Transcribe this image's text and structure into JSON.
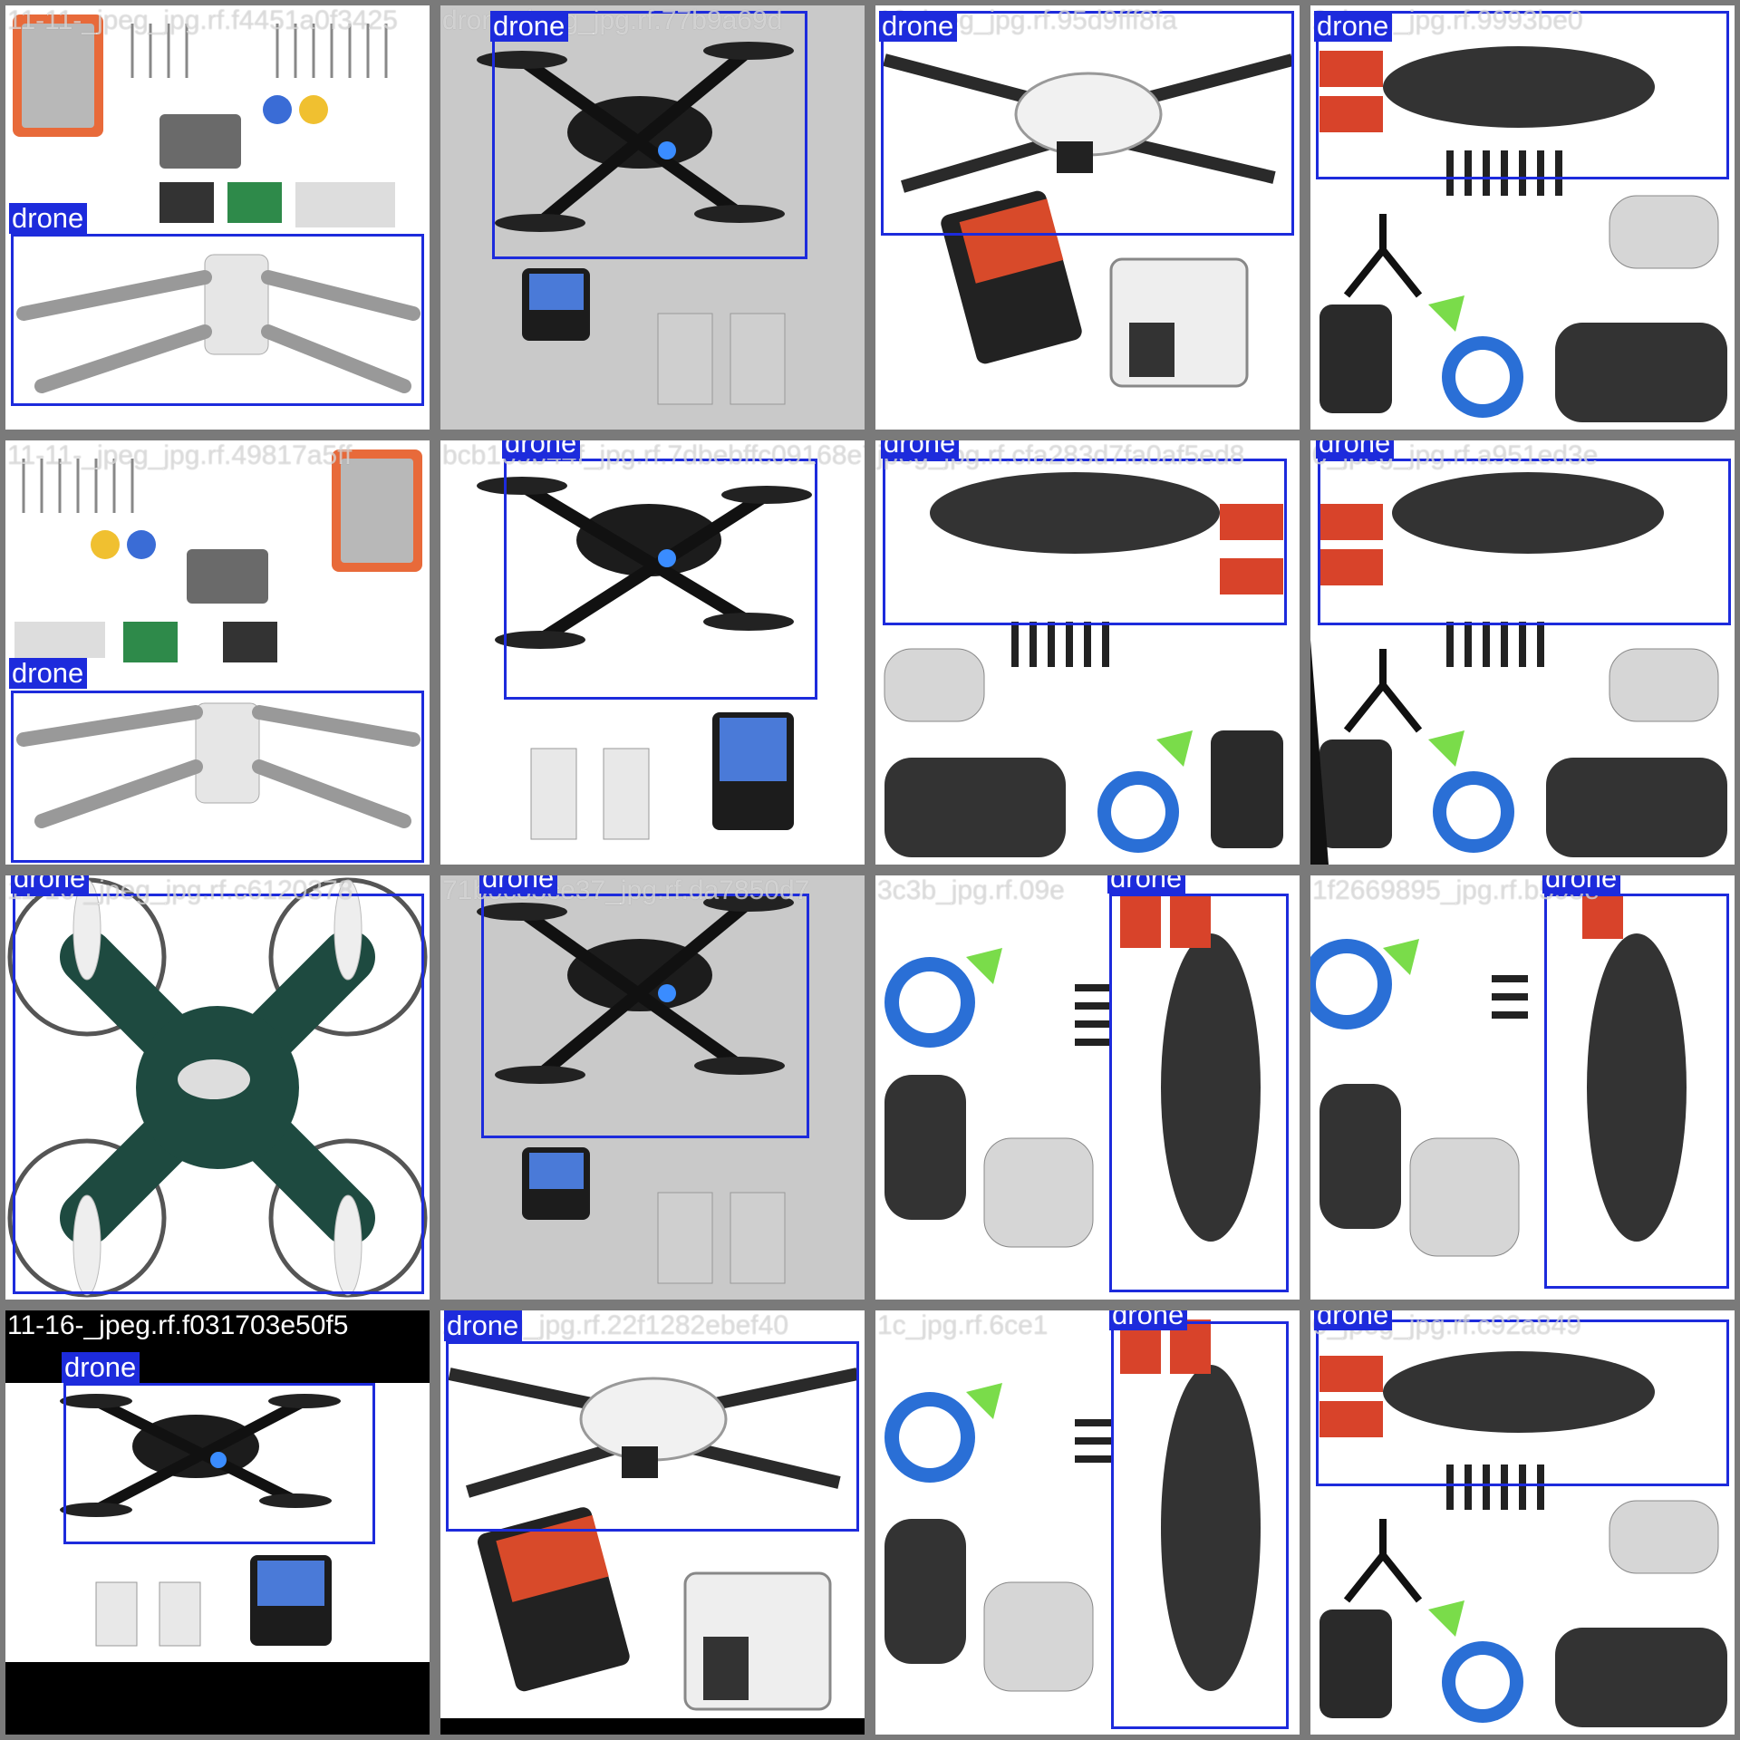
{
  "class_label": "drone",
  "box_color": "#1d2bdc",
  "tiles": [
    {
      "filename": "11-11-_jpeg_jpg.rf.f4451a0f3425"
    },
    {
      "filename": "drone_jpeg_jpg.rf.77b9a69d"
    },
    {
      "filename": "10_jpeg_jpg.rf.95d9fff8fa"
    },
    {
      "filename": "2_jpeg_jpg.rf.9993be0"
    },
    {
      "filename": "11-11-_jpeg_jpg.rf.49817a5ff"
    },
    {
      "filename": "bcb169b44f_jpg.rf.7dbebffc09168e7"
    },
    {
      "filename": "jpeg_jpg.rf.cfa283d7fa0af5ed8"
    },
    {
      "filename": "0_jpeg_jpg.rf.a951ed3e"
    },
    {
      "filename": "11-16-_jpeg_jpg.rf.c6120378"
    },
    {
      "filename": "71b0c83ce37_jpg.rf.da7850d7"
    },
    {
      "filename": "3c3b_jpg.rf.09e"
    },
    {
      "filename": "1f2669895_jpg.rf.b595e"
    },
    {
      "filename": "11-16-_jpeg.rf.f031703e50f5"
    },
    {
      "filename": "2_jpeg_jpg.rf.22f1282ebef40"
    },
    {
      "filename": "1c_jpg.rf.6ce1"
    },
    {
      "filename": "0_jpeg_jpg.rf.c92a849"
    }
  ]
}
